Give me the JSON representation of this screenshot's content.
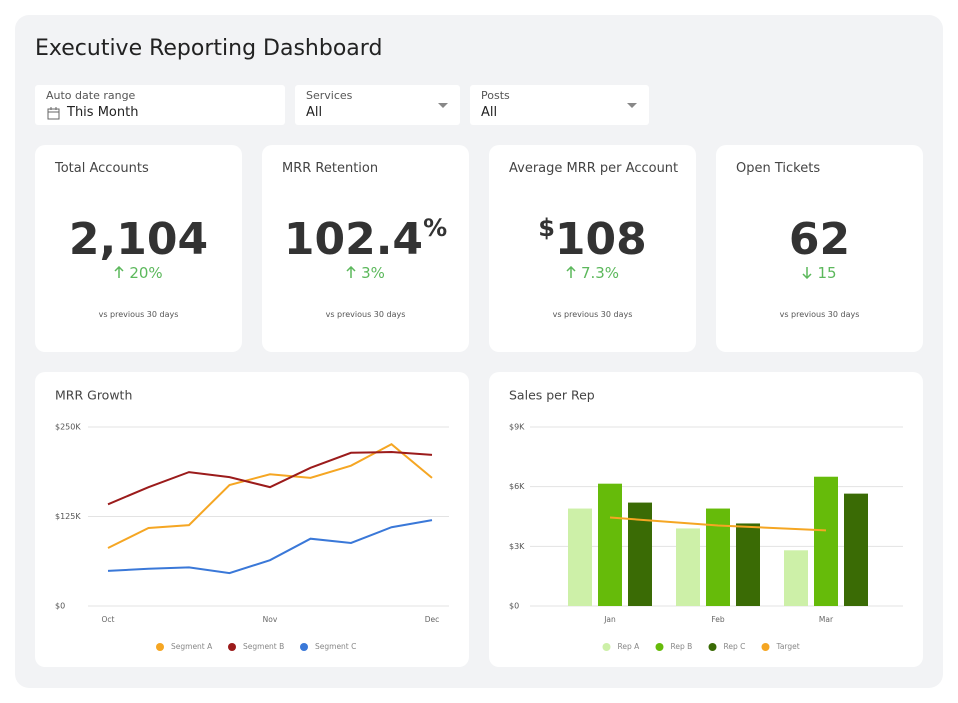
{
  "header": {
    "title": "Executive Reporting Dashboard"
  },
  "filters": [
    {
      "label": "Auto date range",
      "value": "This Month"
    },
    {
      "label": "Services",
      "value": "All"
    },
    {
      "label": "Posts",
      "value": "All"
    }
  ],
  "kpis": [
    {
      "title": "Total Accounts",
      "value": "2,104",
      "direction": "up",
      "change": "20%",
      "note": "vs previous 30 days"
    },
    {
      "title": "MRR Retention",
      "value": "102.4",
      "suffix": "%",
      "direction": "up",
      "change": "3%",
      "note": "vs previous 30 days"
    },
    {
      "title": "Average MRR per Account",
      "prefix": "$",
      "value": "108",
      "direction": "up",
      "change": "7.3%",
      "note": "vs previous 30 days"
    },
    {
      "title": "Open Tickets",
      "value": "62",
      "direction": "down",
      "change": "15",
      "note": "vs previous 30 days"
    }
  ],
  "chart_data": [
    {
      "type": "line",
      "title": "MRR Growth",
      "categories": [
        "Oct",
        null,
        null,
        null,
        "Nov",
        null,
        null,
        null,
        "Dec"
      ],
      "series": [
        {
          "name": "Segment A",
          "color": "#f5a623",
          "values": [
            81000,
            109000,
            113000,
            169000,
            184000,
            179000,
            196000,
            226000,
            179000
          ]
        },
        {
          "name": "Segment B",
          "color": "#9b1b1b",
          "values": [
            142000,
            166000,
            187000,
            180000,
            166000,
            193000,
            214000,
            215000,
            211000
          ]
        },
        {
          "name": "Segment C",
          "color": "#3a78d8",
          "values": [
            49000,
            52000,
            54000,
            46000,
            64000,
            94000,
            88000,
            110000,
            120000
          ]
        }
      ],
      "ylim": [
        0,
        250000
      ],
      "yticks": [
        {
          "value": 0,
          "label": "$0"
        },
        {
          "value": 125000,
          "label": "$125K"
        },
        {
          "value": 250000,
          "label": "$250K"
        }
      ],
      "grid": true,
      "legend": "bottom"
    },
    {
      "type": "bar",
      "title": "Sales per Rep",
      "categories": [
        "Jan",
        "Feb",
        "Mar"
      ],
      "series": [
        {
          "name": "Rep A",
          "color": "#cdf0a8",
          "values": [
            4900,
            3900,
            2800
          ]
        },
        {
          "name": "Rep B",
          "color": "#66bb0a",
          "values": [
            6150,
            4900,
            6500
          ]
        },
        {
          "name": "Rep C",
          "color": "#3a6b05",
          "values": [
            5200,
            4150,
            5650
          ]
        },
        {
          "name": "Target",
          "color": "#f5a623",
          "type": "line",
          "values": [
            4450,
            4050,
            3800
          ]
        }
      ],
      "ylim": [
        0,
        9000
      ],
      "yticks": [
        {
          "value": 0,
          "label": "$0"
        },
        {
          "value": 3000,
          "label": "$3K"
        },
        {
          "value": 6000,
          "label": "$6K"
        },
        {
          "value": 9000,
          "label": "$9K"
        }
      ],
      "grid": true,
      "legend": "bottom"
    }
  ]
}
